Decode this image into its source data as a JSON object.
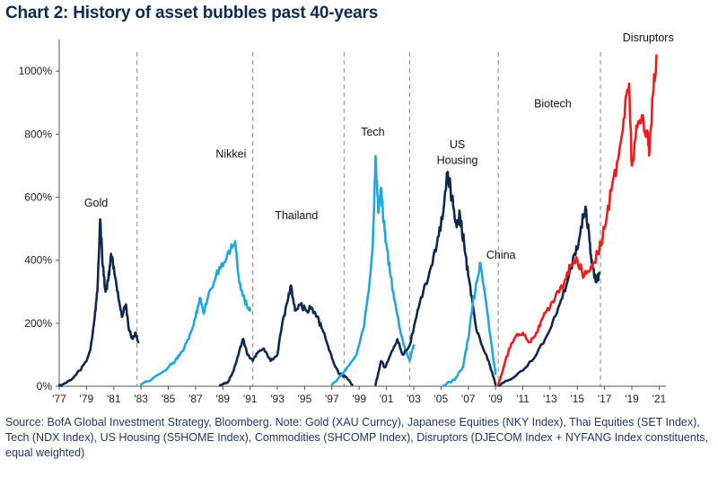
{
  "title": "Chart 2: History of asset bubbles past 40-years",
  "source": "Source:   BofA Global Investment Strategy, Bloomberg. Note: Gold (XAU Curncy), Japanese Equities (NKY Index), Thai Equities (SET Index), Tech (NDX Index), US Housing (S5HOME Index), Commodities (SHCOMP Index), Disruptors (DJECOM Index + NYFANG Index constituents, equal weighted)",
  "colors": {
    "dark": "#10284f",
    "light": "#1fa8e0",
    "red": "#ee1c1c",
    "axis": "#555555",
    "divider": "#9a9a9a",
    "text": "#1f3864"
  },
  "chart_data": {
    "type": "line",
    "title": "Chart 2: History of asset bubbles past 40-years",
    "xlabel": "",
    "ylabel": "",
    "xlim": [
      1977,
      2021.5
    ],
    "ylim": [
      0,
      1100
    ],
    "x_ticks": [
      "'77",
      "'79",
      "'81",
      "'83",
      "'85",
      "'87",
      "'89",
      "'91",
      "'93",
      "'95",
      "'97",
      "'99",
      "'01",
      "'03",
      "'05",
      "'07",
      "'09",
      "'11",
      "'13",
      "'15",
      "'17",
      "'19",
      "'21"
    ],
    "x_tick_values": [
      1977,
      1979,
      1981,
      1983,
      1985,
      1987,
      1989,
      1991,
      1993,
      1995,
      1997,
      1999,
      2001,
      2003,
      2005,
      2007,
      2009,
      2011,
      2013,
      2015,
      2017,
      2019,
      2021
    ],
    "y_ticks": [
      "0%",
      "200%",
      "400%",
      "600%",
      "800%",
      "1000%"
    ],
    "y_tick_values": [
      0,
      200,
      400,
      600,
      800,
      1000
    ],
    "dividers": [
      1982.7,
      1991.2,
      1997.9,
      2002.7,
      2009.2,
      2016.7
    ],
    "series": [
      {
        "name": "Gold",
        "color": "dark",
        "points": [
          [
            1977.0,
            3
          ],
          [
            1977.5,
            10
          ],
          [
            1978.0,
            25
          ],
          [
            1978.5,
            50
          ],
          [
            1979.0,
            80
          ],
          [
            1979.3,
            120
          ],
          [
            1979.6,
            220
          ],
          [
            1979.8,
            300
          ],
          [
            1980.0,
            530
          ],
          [
            1980.2,
            380
          ],
          [
            1980.4,
            300
          ],
          [
            1980.6,
            340
          ],
          [
            1980.8,
            420
          ],
          [
            1981.0,
            380
          ],
          [
            1981.3,
            300
          ],
          [
            1981.6,
            220
          ],
          [
            1981.9,
            260
          ],
          [
            1982.1,
            180
          ],
          [
            1982.4,
            150
          ],
          [
            1982.6,
            170
          ],
          [
            1982.8,
            140
          ]
        ]
      },
      {
        "name": "Nikkei",
        "color": "light",
        "points": [
          [
            1983.0,
            5
          ],
          [
            1984.0,
            30
          ],
          [
            1985.0,
            60
          ],
          [
            1985.5,
            80
          ],
          [
            1986.0,
            110
          ],
          [
            1986.5,
            150
          ],
          [
            1987.0,
            220
          ],
          [
            1987.3,
            280
          ],
          [
            1987.6,
            230
          ],
          [
            1988.0,
            300
          ],
          [
            1988.5,
            350
          ],
          [
            1989.0,
            380
          ],
          [
            1989.5,
            420
          ],
          [
            1989.9,
            460
          ],
          [
            1990.2,
            330
          ],
          [
            1990.5,
            290
          ],
          [
            1990.8,
            250
          ],
          [
            1991.0,
            240
          ]
        ]
      },
      {
        "name": "Thailand",
        "color": "dark",
        "points": [
          [
            1988.8,
            3
          ],
          [
            1989.3,
            10
          ],
          [
            1989.8,
            50
          ],
          [
            1990.2,
            110
          ],
          [
            1990.5,
            150
          ],
          [
            1990.8,
            100
          ],
          [
            1991.2,
            80
          ],
          [
            1991.6,
            110
          ],
          [
            1992.0,
            120
          ],
          [
            1992.5,
            80
          ],
          [
            1993.0,
            100
          ],
          [
            1993.4,
            210
          ],
          [
            1993.8,
            280
          ],
          [
            1994.0,
            320
          ],
          [
            1994.3,
            240
          ],
          [
            1994.7,
            260
          ],
          [
            1995.1,
            240
          ],
          [
            1995.5,
            250
          ],
          [
            1995.9,
            220
          ],
          [
            1996.3,
            180
          ],
          [
            1996.7,
            130
          ],
          [
            1997.0,
            90
          ],
          [
            1997.5,
            40
          ],
          [
            1998.0,
            30
          ],
          [
            1998.5,
            5
          ]
        ]
      },
      {
        "name": "Tech",
        "color": "light",
        "points": [
          [
            1997.0,
            5
          ],
          [
            1998.0,
            50
          ],
          [
            1998.8,
            100
          ],
          [
            1999.3,
            180
          ],
          [
            1999.7,
            300
          ],
          [
            2000.0,
            450
          ],
          [
            2000.2,
            730
          ],
          [
            2000.4,
            550
          ],
          [
            2000.6,
            630
          ],
          [
            2000.8,
            520
          ],
          [
            2001.0,
            450
          ],
          [
            2001.3,
            350
          ],
          [
            2001.7,
            250
          ],
          [
            2002.0,
            180
          ],
          [
            2002.3,
            130
          ],
          [
            2002.7,
            80
          ],
          [
            2003.0,
            130
          ]
        ]
      },
      {
        "name": "US Housing",
        "color": "dark",
        "points": [
          [
            2000.2,
            5
          ],
          [
            2000.6,
            80
          ],
          [
            2000.9,
            60
          ],
          [
            2001.3,
            100
          ],
          [
            2001.8,
            150
          ],
          [
            2002.2,
            100
          ],
          [
            2002.7,
            130
          ],
          [
            2003.2,
            220
          ],
          [
            2003.7,
            300
          ],
          [
            2004.2,
            370
          ],
          [
            2004.7,
            450
          ],
          [
            2005.1,
            530
          ],
          [
            2005.5,
            680
          ],
          [
            2005.8,
            600
          ],
          [
            2006.1,
            520
          ],
          [
            2006.4,
            540
          ],
          [
            2006.7,
            450
          ],
          [
            2007.0,
            350
          ],
          [
            2007.3,
            270
          ],
          [
            2007.6,
            180
          ],
          [
            2008.0,
            130
          ],
          [
            2008.5,
            80
          ],
          [
            2009.0,
            5
          ]
        ]
      },
      {
        "name": "China",
        "color": "light",
        "points": [
          [
            2005.2,
            3
          ],
          [
            2006.0,
            20
          ],
          [
            2006.6,
            60
          ],
          [
            2007.0,
            150
          ],
          [
            2007.3,
            250
          ],
          [
            2007.6,
            330
          ],
          [
            2007.9,
            390
          ],
          [
            2008.2,
            300
          ],
          [
            2008.5,
            200
          ],
          [
            2008.8,
            100
          ],
          [
            2009.0,
            40
          ]
        ]
      },
      {
        "name": "Biotech",
        "color": "dark",
        "points": [
          [
            2009.2,
            3
          ],
          [
            2010.0,
            20
          ],
          [
            2011.0,
            50
          ],
          [
            2012.0,
            100
          ],
          [
            2013.0,
            180
          ],
          [
            2013.6,
            250
          ],
          [
            2014.2,
            320
          ],
          [
            2014.8,
            420
          ],
          [
            2015.2,
            480
          ],
          [
            2015.6,
            570
          ],
          [
            2015.9,
            460
          ],
          [
            2016.1,
            380
          ],
          [
            2016.4,
            330
          ],
          [
            2016.6,
            360
          ]
        ]
      },
      {
        "name": "Disruptors",
        "color": "red",
        "points": [
          [
            2009.2,
            5
          ],
          [
            2009.6,
            60
          ],
          [
            2010.0,
            120
          ],
          [
            2010.5,
            160
          ],
          [
            2011.0,
            170
          ],
          [
            2011.5,
            140
          ],
          [
            2012.0,
            170
          ],
          [
            2012.5,
            220
          ],
          [
            2013.0,
            250
          ],
          [
            2013.5,
            300
          ],
          [
            2014.0,
            320
          ],
          [
            2014.5,
            380
          ],
          [
            2015.0,
            400
          ],
          [
            2015.5,
            350
          ],
          [
            2016.0,
            380
          ],
          [
            2016.5,
            420
          ],
          [
            2017.0,
            500
          ],
          [
            2017.5,
            620
          ],
          [
            2018.0,
            720
          ],
          [
            2018.4,
            850
          ],
          [
            2018.8,
            960
          ],
          [
            2019.0,
            700
          ],
          [
            2019.4,
            820
          ],
          [
            2019.8,
            860
          ],
          [
            2020.1,
            800
          ],
          [
            2020.3,
            750
          ],
          [
            2020.6,
            950
          ],
          [
            2020.8,
            1050
          ]
        ]
      }
    ],
    "annotations": [
      {
        "text": "Gold",
        "x": 1979.7,
        "y": 570
      },
      {
        "text": "Nikkei",
        "x": 1989.6,
        "y": 725
      },
      {
        "text": "Thailand",
        "x": 1994.4,
        "y": 530
      },
      {
        "text": "Tech",
        "x": 2000.0,
        "y": 795
      },
      {
        "text": "US",
        "x": 2006.2,
        "y": 755
      },
      {
        "text": "Housing",
        "x": 2006.2,
        "y": 705
      },
      {
        "text": "China",
        "x": 2009.4,
        "y": 405
      },
      {
        "text": "Biotech",
        "x": 2013.2,
        "y": 885
      },
      {
        "text": "Disruptors",
        "x": 2020.2,
        "y": 1095
      }
    ]
  }
}
